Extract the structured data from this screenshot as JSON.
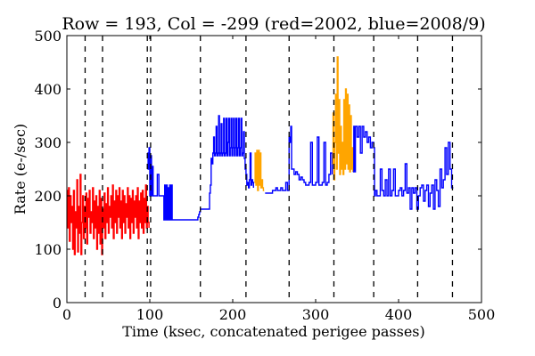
{
  "chart_data": {
    "type": "line",
    "title": "Row = 193, Col = -299 (red=2002, blue=2008/9)",
    "xlabel": "Time (ksec, concatenated perigee passes)",
    "ylabel": "Rate (e-/sec)",
    "xlim": [
      0,
      500
    ],
    "ylim": [
      0,
      500
    ],
    "xticks": [
      {
        "value": 0,
        "label": "0"
      },
      {
        "value": 100,
        "label": "100"
      },
      {
        "value": 200,
        "label": "200"
      },
      {
        "value": 300,
        "label": "300"
      },
      {
        "value": 400,
        "label": "400"
      },
      {
        "value": 500,
        "label": "500"
      }
    ],
    "yticks": [
      {
        "value": 0,
        "label": "0"
      },
      {
        "value": 100,
        "label": "100"
      },
      {
        "value": 200,
        "label": "200"
      },
      {
        "value": 300,
        "label": "300"
      },
      {
        "value": 400,
        "label": "400"
      },
      {
        "value": 500,
        "label": "500"
      }
    ],
    "grid": false,
    "legend": "none",
    "vlines": [
      22,
      43,
      97,
      101,
      161,
      216,
      268,
      322,
      370,
      423,
      465
    ],
    "vline_color": "#000000",
    "series": [
      {
        "color": "#ff0000",
        "x": [
          0,
          1,
          2,
          3,
          4,
          5,
          6,
          7,
          8,
          9,
          10,
          11,
          12,
          13,
          14,
          15,
          16,
          17,
          18,
          19,
          20,
          21,
          22,
          23,
          24,
          25,
          26,
          27,
          28,
          29,
          30,
          31,
          32,
          33,
          34,
          35,
          36,
          37,
          38,
          39,
          40,
          41,
          42,
          43,
          44,
          45,
          46,
          47,
          48,
          49,
          50,
          51,
          52,
          53,
          54,
          55,
          56,
          57,
          58,
          59,
          60,
          61,
          62,
          63,
          64,
          65,
          66,
          67,
          68,
          69,
          70,
          71,
          72,
          73,
          74,
          75,
          76,
          77,
          78,
          79,
          80,
          81,
          82,
          83,
          84,
          85,
          86,
          87,
          88,
          89,
          90,
          91,
          92,
          93,
          94,
          95,
          96,
          97,
          98,
          99
        ],
        "y": [
          210,
          140,
          215,
          115,
          200,
          150,
          180,
          100,
          210,
          90,
          170,
          140,
          230,
          95,
          180,
          130,
          240,
          90,
          150,
          200,
          120,
          180,
          140,
          205,
          110,
          195,
          160,
          210,
          130,
          170,
          150,
          215,
          120,
          190,
          140,
          200,
          100,
          180,
          130,
          210,
          110,
          195,
          90,
          175,
          140,
          205,
          120,
          185,
          150,
          215,
          130,
          180,
          160,
          200,
          140,
          220,
          120,
          190,
          150,
          210,
          130,
          200,
          160,
          215,
          140,
          190,
          120,
          210,
          150,
          200,
          130,
          185,
          160,
          215,
          140,
          200,
          120,
          195,
          150,
          210,
          130,
          190,
          160,
          200,
          140,
          215,
          120,
          190,
          150,
          205,
          140,
          210,
          130,
          195,
          150,
          220,
          140,
          180,
          150,
          140
        ]
      },
      {
        "color": "#0000ff",
        "x": [
          97,
          98,
          99,
          100,
          100,
          101,
          102,
          103,
          104,
          105,
          106,
          107,
          108,
          109,
          110,
          111,
          112,
          113,
          114,
          115,
          116,
          117,
          118,
          119,
          120,
          121,
          122,
          123,
          124,
          125,
          126,
          127,
          128,
          129,
          130,
          131,
          132,
          133,
          134,
          135,
          136,
          137,
          138,
          139,
          140,
          141,
          142,
          143,
          144,
          145,
          146,
          147,
          148,
          149,
          150,
          151,
          152,
          153,
          154,
          155,
          156,
          157,
          158,
          159,
          160,
          161,
          162,
          163,
          164,
          165,
          166,
          167,
          168,
          169,
          170,
          171,
          172,
          173,
          174,
          175,
          176,
          177,
          178,
          179,
          180,
          181,
          182,
          183,
          184,
          185,
          186,
          187,
          188,
          189,
          190,
          191,
          192,
          193,
          194,
          195,
          196,
          197,
          198,
          199,
          200,
          201,
          202,
          203,
          204,
          205,
          206,
          207,
          208,
          209,
          210,
          211,
          212,
          213,
          214,
          215,
          216,
          217,
          218,
          219,
          220,
          221,
          222,
          223,
          224,
          225
        ],
        "y": [
          280,
          250,
          290,
          260,
          200,
          275,
          200,
          255,
          200,
          200,
          200,
          200,
          200,
          240,
          240,
          200,
          200,
          200,
          200,
          200,
          200,
          155,
          220,
          155,
          220,
          155,
          215,
          155,
          220,
          155,
          220,
          155,
          155,
          155,
          155,
          155,
          155,
          155,
          155,
          155,
          155,
          155,
          155,
          155,
          155,
          155,
          155,
          155,
          155,
          155,
          155,
          155,
          155,
          155,
          155,
          155,
          155,
          155,
          155,
          155,
          155,
          155,
          160,
          165,
          170,
          175,
          175,
          175,
          175,
          175,
          175,
          175,
          175,
          175,
          175,
          175,
          205,
          220,
          270,
          260,
          280,
          310,
          275,
          280,
          330,
          275,
          280,
          350,
          275,
          280,
          335,
          275,
          280,
          345,
          275,
          280,
          345,
          275,
          300,
          345,
          275,
          290,
          345,
          275,
          290,
          345,
          275,
          290,
          345,
          275,
          290,
          345,
          275,
          290,
          345,
          275,
          280,
          320,
          270,
          250,
          240,
          220,
          225,
          215,
          230,
          280,
          220,
          230,
          225,
          215
        ]
      },
      {
        "color": "#ffa500",
        "x": [
          226,
          227,
          228,
          229,
          230,
          231,
          232,
          233,
          234,
          235,
          236,
          237,
          238
        ],
        "y": [
          225,
          280,
          220,
          285,
          210,
          285,
          220,
          280,
          215,
          230,
          215,
          210,
          210
        ]
      },
      {
        "color": "#0000ff",
        "x": [
          239,
          240,
          242,
          244,
          246,
          248,
          250,
          252,
          254,
          256,
          258,
          260,
          262,
          264,
          266,
          268,
          269,
          270,
          271,
          272,
          274,
          276,
          278,
          280,
          282,
          284,
          286,
          288,
          290,
          292,
          294,
          296,
          298,
          300,
          302,
          304,
          306,
          308,
          310,
          312,
          314,
          316,
          318,
          320
        ],
        "y": [
          205,
          205,
          205,
          205,
          205,
          210,
          210,
          215,
          210,
          210,
          215,
          210,
          210,
          225,
          210,
          310,
          300,
          330,
          250,
          250,
          240,
          245,
          240,
          230,
          235,
          230,
          225,
          220,
          220,
          225,
          300,
          220,
          220,
          225,
          310,
          220,
          220,
          225,
          300,
          220,
          225,
          240,
          280,
          240
        ]
      },
      {
        "color": "#ffa500",
        "x": [
          320,
          321,
          322,
          323,
          324,
          325,
          326,
          327,
          328,
          329,
          330,
          331,
          332,
          333,
          334,
          335,
          336,
          337,
          338,
          339,
          340,
          341,
          342,
          343,
          344,
          345
        ],
        "y": [
          260,
          355,
          230,
          300,
          390,
          250,
          460,
          280,
          380,
          240,
          330,
          250,
          300,
          240,
          380,
          250,
          400,
          260,
          390,
          250,
          370,
          245,
          350,
          250,
          290,
          245
        ]
      },
      {
        "color": "#0000ff",
        "x": [
          345,
          346,
          347,
          348,
          350,
          352,
          354,
          356,
          358,
          360,
          362,
          364,
          366,
          368,
          370,
          371,
          372,
          374,
          376,
          378,
          380,
          382,
          384,
          386,
          388,
          390,
          392,
          394,
          396,
          398,
          400,
          402,
          404,
          406,
          408,
          410,
          412,
          414,
          416,
          418,
          420,
          422,
          424,
          426,
          428,
          430,
          432,
          434,
          436,
          438,
          440,
          442,
          444,
          446,
          448,
          450,
          452,
          454,
          456,
          458,
          460,
          462,
          464,
          466
        ],
        "y": [
          245,
          330,
          245,
          330,
          310,
          330,
          280,
          330,
          310,
          320,
          300,
          310,
          290,
          300,
          290,
          200,
          210,
          200,
          200,
          250,
          210,
          200,
          230,
          200,
          250,
          200,
          210,
          250,
          200,
          200,
          210,
          215,
          200,
          210,
          260,
          205,
          215,
          175,
          215,
          205,
          215,
          175,
          200,
          215,
          220,
          190,
          210,
          220,
          180,
          205,
          220,
          175,
          230,
          210,
          180,
          250,
          215,
          230,
          290,
          240,
          300,
          250,
          215,
          215
        ]
      }
    ]
  }
}
